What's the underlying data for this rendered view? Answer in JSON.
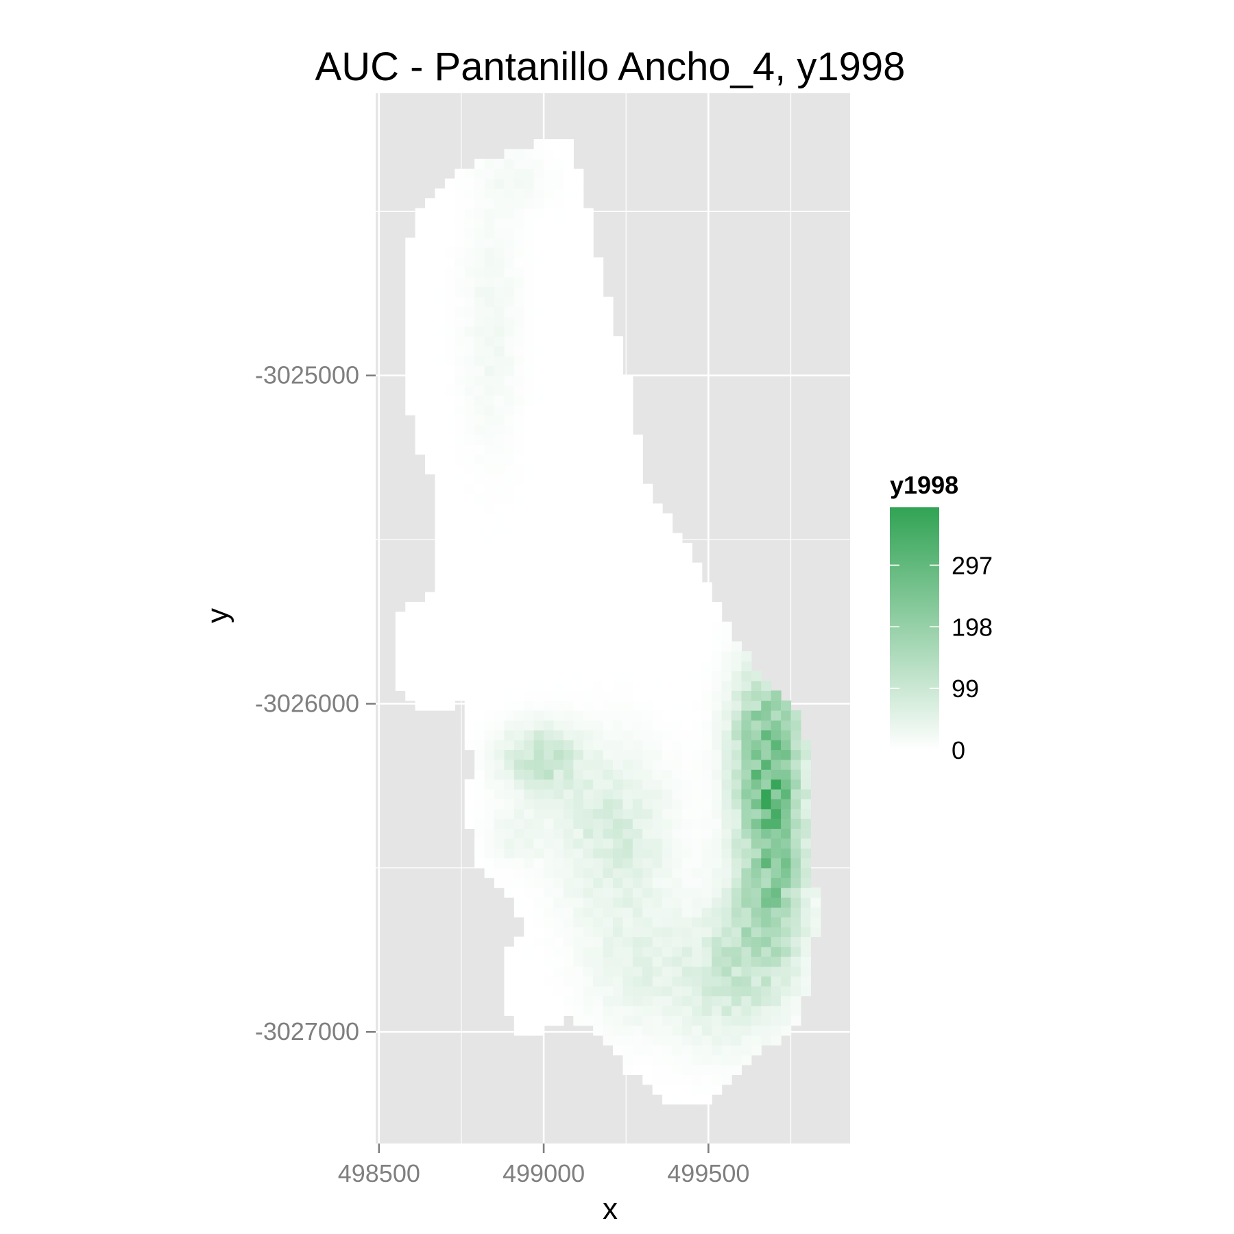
{
  "chart_data": {
    "type": "heatmap",
    "title": "AUC - Pantanillo Ancho_4, y1998",
    "xlabel": "x",
    "ylabel": "y",
    "x_ticks": [
      498500,
      499000,
      499500
    ],
    "y_ticks": [
      -3025000,
      -3026000,
      -3027000
    ],
    "xlim": [
      498490,
      499930
    ],
    "ylim": [
      -3027340,
      -3024140
    ],
    "grid": true,
    "panel_background": "#e5e5e5",
    "grid_color": "#ffffff",
    "low_color": "#ffffff",
    "high_color": "#31a354",
    "legend": {
      "title": "y1998",
      "position": "right",
      "breaks": [
        0,
        99,
        198,
        297
      ],
      "limits": [
        0,
        390
      ]
    },
    "cell_size": 30,
    "region_boundary": [
      [
        499000,
        -3024290
      ],
      [
        499090,
        -3024290
      ],
      [
        499120,
        -3024440
      ],
      [
        499150,
        -3024560
      ],
      [
        499200,
        -3024780
      ],
      [
        499250,
        -3024980
      ],
      [
        499320,
        -3025350
      ],
      [
        499480,
        -3025590
      ],
      [
        499580,
        -3025800
      ],
      [
        499670,
        -3025940
      ],
      [
        499760,
        -3025990
      ],
      [
        499810,
        -3026150
      ],
      [
        499820,
        -3026540
      ],
      [
        499840,
        -3026610
      ],
      [
        499800,
        -3026880
      ],
      [
        499760,
        -3026990
      ],
      [
        499650,
        -3027070
      ],
      [
        499550,
        -3027150
      ],
      [
        499500,
        -3027220
      ],
      [
        499390,
        -3027220
      ],
      [
        499330,
        -3027170
      ],
      [
        499260,
        -3027130
      ],
      [
        499210,
        -3027050
      ],
      [
        499150,
        -3026990
      ],
      [
        499080,
        -3026960
      ],
      [
        499020,
        -3026980
      ],
      [
        498960,
        -3027020
      ],
      [
        498900,
        -3026980
      ],
      [
        498870,
        -3026880
      ],
      [
        498890,
        -3026740
      ],
      [
        498950,
        -3026700
      ],
      [
        498880,
        -3026560
      ],
      [
        498800,
        -3026480
      ],
      [
        498760,
        -3026310
      ],
      [
        498780,
        -3026190
      ],
      [
        498760,
        -3025990
      ],
      [
        498700,
        -3026040
      ],
      [
        498610,
        -3026000
      ],
      [
        498550,
        -3025940
      ],
      [
        498560,
        -3025720
      ],
      [
        498670,
        -3025650
      ],
      [
        498670,
        -3025330
      ],
      [
        498610,
        -3025210
      ],
      [
        498590,
        -3025090
      ],
      [
        498590,
        -3024840
      ],
      [
        498590,
        -3024600
      ],
      [
        498640,
        -3024460
      ],
      [
        498750,
        -3024370
      ],
      [
        498880,
        -3024330
      ]
    ],
    "hotspots": [
      {
        "x": 499680,
        "y": -3026150,
        "sx": 70,
        "sy": 180,
        "amp": 240
      },
      {
        "x": 499700,
        "y": -3026440,
        "sx": 60,
        "sy": 170,
        "amp": 170
      },
      {
        "x": 499660,
        "y": -3026700,
        "sx": 90,
        "sy": 150,
        "amp": 110
      },
      {
        "x": 499540,
        "y": -3026850,
        "sx": 90,
        "sy": 140,
        "amp": 60
      },
      {
        "x": 498990,
        "y": -3026170,
        "sx": 80,
        "sy": 70,
        "amp": 110
      },
      {
        "x": 499210,
        "y": -3026400,
        "sx": 110,
        "sy": 170,
        "amp": 75
      },
      {
        "x": 499300,
        "y": -3026800,
        "sx": 110,
        "sy": 130,
        "amp": 45
      },
      {
        "x": 498920,
        "y": -3026400,
        "sx": 60,
        "sy": 60,
        "amp": 35
      },
      {
        "x": 498840,
        "y": -3024850,
        "sx": 60,
        "sy": 250,
        "amp": 25
      },
      {
        "x": 498920,
        "y": -3024400,
        "sx": 70,
        "sy": 60,
        "amp": 20
      }
    ]
  }
}
